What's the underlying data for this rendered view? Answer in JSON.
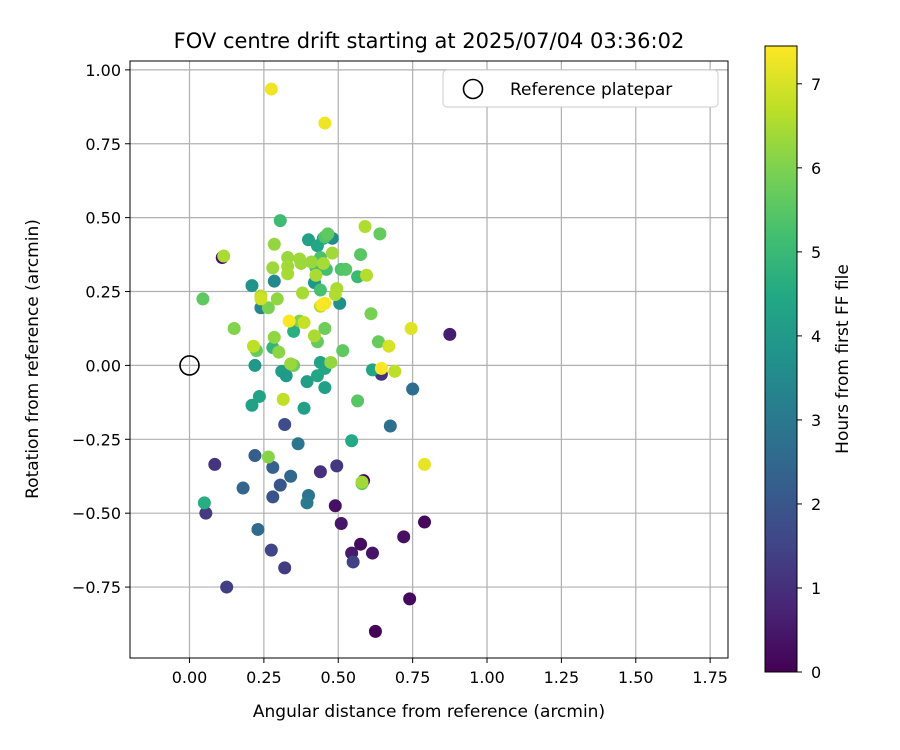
{
  "chart_data": {
    "type": "scatter",
    "title": "FOV centre drift starting at 2025/07/04 03:36:02",
    "xlabel": "Angular distance from reference (arcmin)",
    "ylabel": "Rotation from reference (arcmin)",
    "xlim": [
      -0.2,
      1.81
    ],
    "ylim": [
      -0.99,
      1.03
    ],
    "xticks": [
      0.0,
      0.25,
      0.5,
      0.75,
      1.0,
      1.25,
      1.5,
      1.75
    ],
    "xtick_labels": [
      "0.00",
      "0.25",
      "0.50",
      "0.75",
      "1.00",
      "1.25",
      "1.50",
      "1.75"
    ],
    "yticks": [
      1.0,
      0.75,
      0.5,
      0.25,
      0.0,
      -0.25,
      -0.5,
      -0.75
    ],
    "ytick_labels": [
      "1.00",
      "0.75",
      "0.50",
      "0.25",
      "0.00",
      "−0.25",
      "−0.50",
      "−0.75"
    ],
    "grid": true,
    "legend": {
      "placement": "top-right",
      "entries": [
        "Reference platepar"
      ]
    },
    "reference_point": {
      "x": 0.0,
      "y": 0.0,
      "marker": "open-circle"
    },
    "colorbar": {
      "label": "Hours from first FF file",
      "min": 0,
      "max": 7.45,
      "ticks": [
        0,
        1,
        2,
        3,
        4,
        5,
        6,
        7
      ],
      "tick_labels": [
        "0",
        "1",
        "2",
        "3",
        "4",
        "5",
        "6",
        "7"
      ],
      "colormap": "viridis"
    },
    "points": [
      {
        "x": 0.625,
        "y": -0.9,
        "t": 0.05
      },
      {
        "x": 0.74,
        "y": -0.79,
        "t": 0.2
      },
      {
        "x": 0.79,
        "y": -0.53,
        "t": 0.15
      },
      {
        "x": 0.72,
        "y": -0.58,
        "t": 0.3
      },
      {
        "x": 0.615,
        "y": -0.635,
        "t": 0.4
      },
      {
        "x": 0.575,
        "y": -0.605,
        "t": 0.25
      },
      {
        "x": 0.545,
        "y": -0.635,
        "t": 0.55
      },
      {
        "x": 0.51,
        "y": -0.535,
        "t": 0.45
      },
      {
        "x": 0.49,
        "y": -0.475,
        "t": 0.35
      },
      {
        "x": 0.585,
        "y": -0.39,
        "t": 0.1
      },
      {
        "x": 0.875,
        "y": 0.105,
        "t": 0.6
      },
      {
        "x": 0.11,
        "y": 0.365,
        "t": 0.3
      },
      {
        "x": 0.55,
        "y": -0.665,
        "t": 1.45
      },
      {
        "x": 0.125,
        "y": -0.75,
        "t": 1.4
      },
      {
        "x": 0.32,
        "y": -0.685,
        "t": 1.3
      },
      {
        "x": 0.275,
        "y": -0.625,
        "t": 1.5
      },
      {
        "x": 0.055,
        "y": -0.5,
        "t": 1.25
      },
      {
        "x": 0.085,
        "y": -0.335,
        "t": 1.15
      },
      {
        "x": 0.44,
        "y": -0.36,
        "t": 1.05
      },
      {
        "x": 0.495,
        "y": -0.34,
        "t": 1.2
      },
      {
        "x": 0.645,
        "y": -0.03,
        "t": 1.1
      },
      {
        "x": 0.32,
        "y": -0.2,
        "t": 1.7
      },
      {
        "x": 0.28,
        "y": -0.445,
        "t": 1.9
      },
      {
        "x": 0.305,
        "y": -0.405,
        "t": 2.0
      },
      {
        "x": 0.22,
        "y": -0.305,
        "t": 2.2
      },
      {
        "x": 0.28,
        "y": -0.345,
        "t": 2.3
      },
      {
        "x": 0.34,
        "y": -0.375,
        "t": 2.5
      },
      {
        "x": 0.18,
        "y": -0.415,
        "t": 2.4
      },
      {
        "x": 0.23,
        "y": -0.555,
        "t": 2.6
      },
      {
        "x": 0.4,
        "y": -0.44,
        "t": 2.8
      },
      {
        "x": 0.395,
        "y": -0.465,
        "t": 3.0
      },
      {
        "x": 0.365,
        "y": -0.265,
        "t": 2.9
      },
      {
        "x": 0.675,
        "y": -0.205,
        "t": 2.7
      },
      {
        "x": 0.75,
        "y": -0.08,
        "t": 2.65
      },
      {
        "x": 0.24,
        "y": 0.195,
        "t": 3.4
      },
      {
        "x": 0.285,
        "y": 0.285,
        "t": 3.5
      },
      {
        "x": 0.21,
        "y": 0.27,
        "t": 3.8
      },
      {
        "x": 0.48,
        "y": 0.43,
        "t": 3.6
      },
      {
        "x": 0.505,
        "y": 0.21,
        "t": 3.7
      },
      {
        "x": 0.42,
        "y": 0.28,
        "t": 3.9
      },
      {
        "x": 0.22,
        "y": 0.0,
        "t": 4.0
      },
      {
        "x": 0.31,
        "y": -0.02,
        "t": 4.1
      },
      {
        "x": 0.325,
        "y": -0.035,
        "t": 4.05
      },
      {
        "x": 0.385,
        "y": -0.145,
        "t": 4.2
      },
      {
        "x": 0.21,
        "y": -0.135,
        "t": 4.25
      },
      {
        "x": 0.235,
        "y": -0.105,
        "t": 4.3
      },
      {
        "x": 0.44,
        "y": 0.01,
        "t": 4.3
      },
      {
        "x": 0.455,
        "y": -0.01,
        "t": 4.35
      },
      {
        "x": 0.455,
        "y": -0.075,
        "t": 4.2
      },
      {
        "x": 0.395,
        "y": -0.055,
        "t": 4.15
      },
      {
        "x": 0.43,
        "y": -0.035,
        "t": 4.4
      },
      {
        "x": 0.615,
        "y": -0.015,
        "t": 4.35
      },
      {
        "x": 0.4,
        "y": 0.425,
        "t": 4.25
      },
      {
        "x": 0.45,
        "y": 0.43,
        "t": 4.3
      },
      {
        "x": 0.43,
        "y": 0.405,
        "t": 4.4
      },
      {
        "x": 0.545,
        "y": -0.255,
        "t": 4.5
      },
      {
        "x": 0.05,
        "y": -0.465,
        "t": 4.6
      },
      {
        "x": 0.35,
        "y": 0.115,
        "t": 4.7
      },
      {
        "x": 0.28,
        "y": 0.06,
        "t": 4.9
      },
      {
        "x": 0.305,
        "y": 0.49,
        "t": 5.1
      },
      {
        "x": 0.46,
        "y": 0.325,
        "t": 5.2
      },
      {
        "x": 0.425,
        "y": 0.33,
        "t": 5.15
      },
      {
        "x": 0.565,
        "y": 0.3,
        "t": 5.05
      },
      {
        "x": 0.44,
        "y": 0.365,
        "t": 5.3
      },
      {
        "x": 0.44,
        "y": 0.255,
        "t": 5.25
      },
      {
        "x": 0.455,
        "y": 0.435,
        "t": 5.4
      },
      {
        "x": 0.51,
        "y": 0.325,
        "t": 5.35
      },
      {
        "x": 0.525,
        "y": 0.325,
        "t": 5.45
      },
      {
        "x": 0.575,
        "y": 0.375,
        "t": 5.5
      },
      {
        "x": 0.465,
        "y": 0.445,
        "t": 5.6
      },
      {
        "x": 0.64,
        "y": 0.445,
        "t": 5.65
      },
      {
        "x": 0.565,
        "y": -0.12,
        "t": 5.5
      },
      {
        "x": 0.58,
        "y": -0.4,
        "t": 5.55
      },
      {
        "x": 0.045,
        "y": 0.225,
        "t": 5.6
      },
      {
        "x": 0.225,
        "y": 0.05,
        "t": 5.7
      },
      {
        "x": 0.43,
        "y": 0.08,
        "t": 5.65
      },
      {
        "x": 0.515,
        "y": 0.05,
        "t": 5.6
      },
      {
        "x": 0.35,
        "y": 0.0,
        "t": 5.75
      },
      {
        "x": 0.455,
        "y": 0.125,
        "t": 5.8
      },
      {
        "x": 0.635,
        "y": 0.08,
        "t": 5.7
      },
      {
        "x": 0.61,
        "y": 0.175,
        "t": 5.9
      },
      {
        "x": 0.265,
        "y": 0.195,
        "t": 5.95
      },
      {
        "x": 0.37,
        "y": 0.15,
        "t": 6.0
      },
      {
        "x": 0.15,
        "y": 0.125,
        "t": 6.05
      },
      {
        "x": 0.265,
        "y": -0.31,
        "t": 6.1
      },
      {
        "x": 0.285,
        "y": 0.095,
        "t": 6.2
      },
      {
        "x": 0.3,
        "y": 0.045,
        "t": 6.15
      },
      {
        "x": 0.475,
        "y": 0.01,
        "t": 6.25
      },
      {
        "x": 0.34,
        "y": 0.005,
        "t": 6.3
      },
      {
        "x": 0.28,
        "y": 0.33,
        "t": 6.35
      },
      {
        "x": 0.295,
        "y": 0.225,
        "t": 6.2
      },
      {
        "x": 0.285,
        "y": 0.41,
        "t": 6.25
      },
      {
        "x": 0.33,
        "y": 0.365,
        "t": 6.3
      },
      {
        "x": 0.33,
        "y": 0.335,
        "t": 6.4
      },
      {
        "x": 0.33,
        "y": 0.31,
        "t": 6.45
      },
      {
        "x": 0.37,
        "y": 0.36,
        "t": 6.4
      },
      {
        "x": 0.375,
        "y": 0.345,
        "t": 6.35
      },
      {
        "x": 0.41,
        "y": 0.35,
        "t": 6.3
      },
      {
        "x": 0.425,
        "y": 0.305,
        "t": 6.5
      },
      {
        "x": 0.45,
        "y": 0.345,
        "t": 6.45
      },
      {
        "x": 0.48,
        "y": 0.38,
        "t": 6.4
      },
      {
        "x": 0.495,
        "y": 0.26,
        "t": 6.5
      },
      {
        "x": 0.49,
        "y": 0.24,
        "t": 6.55
      },
      {
        "x": 0.38,
        "y": 0.245,
        "t": 6.45
      },
      {
        "x": 0.44,
        "y": 0.2,
        "t": 6.6
      },
      {
        "x": 0.42,
        "y": 0.1,
        "t": 6.5
      },
      {
        "x": 0.59,
        "y": 0.47,
        "t": 6.55
      },
      {
        "x": 0.595,
        "y": 0.305,
        "t": 6.6
      },
      {
        "x": 0.24,
        "y": 0.235,
        "t": 6.65
      },
      {
        "x": 0.215,
        "y": 0.065,
        "t": 6.7
      },
      {
        "x": 0.315,
        "y": -0.115,
        "t": 6.75
      },
      {
        "x": 0.385,
        "y": 0.145,
        "t": 6.8
      },
      {
        "x": 0.69,
        "y": -0.02,
        "t": 6.7
      },
      {
        "x": 0.58,
        "y": -0.395,
        "t": 6.4
      },
      {
        "x": 0.115,
        "y": 0.37,
        "t": 6.5
      },
      {
        "x": 0.24,
        "y": 0.225,
        "t": 6.9
      },
      {
        "x": 0.67,
        "y": 0.065,
        "t": 7.0
      },
      {
        "x": 0.745,
        "y": 0.125,
        "t": 7.1
      },
      {
        "x": 0.79,
        "y": -0.335,
        "t": 7.2
      },
      {
        "x": 0.275,
        "y": 0.935,
        "t": 7.3
      },
      {
        "x": 0.455,
        "y": 0.82,
        "t": 7.3
      },
      {
        "x": 0.455,
        "y": 0.21,
        "t": 7.35
      },
      {
        "x": 0.445,
        "y": 0.205,
        "t": 7.4
      },
      {
        "x": 0.335,
        "y": 0.15,
        "t": 7.4
      },
      {
        "x": 0.645,
        "y": -0.01,
        "t": 7.45
      }
    ]
  }
}
